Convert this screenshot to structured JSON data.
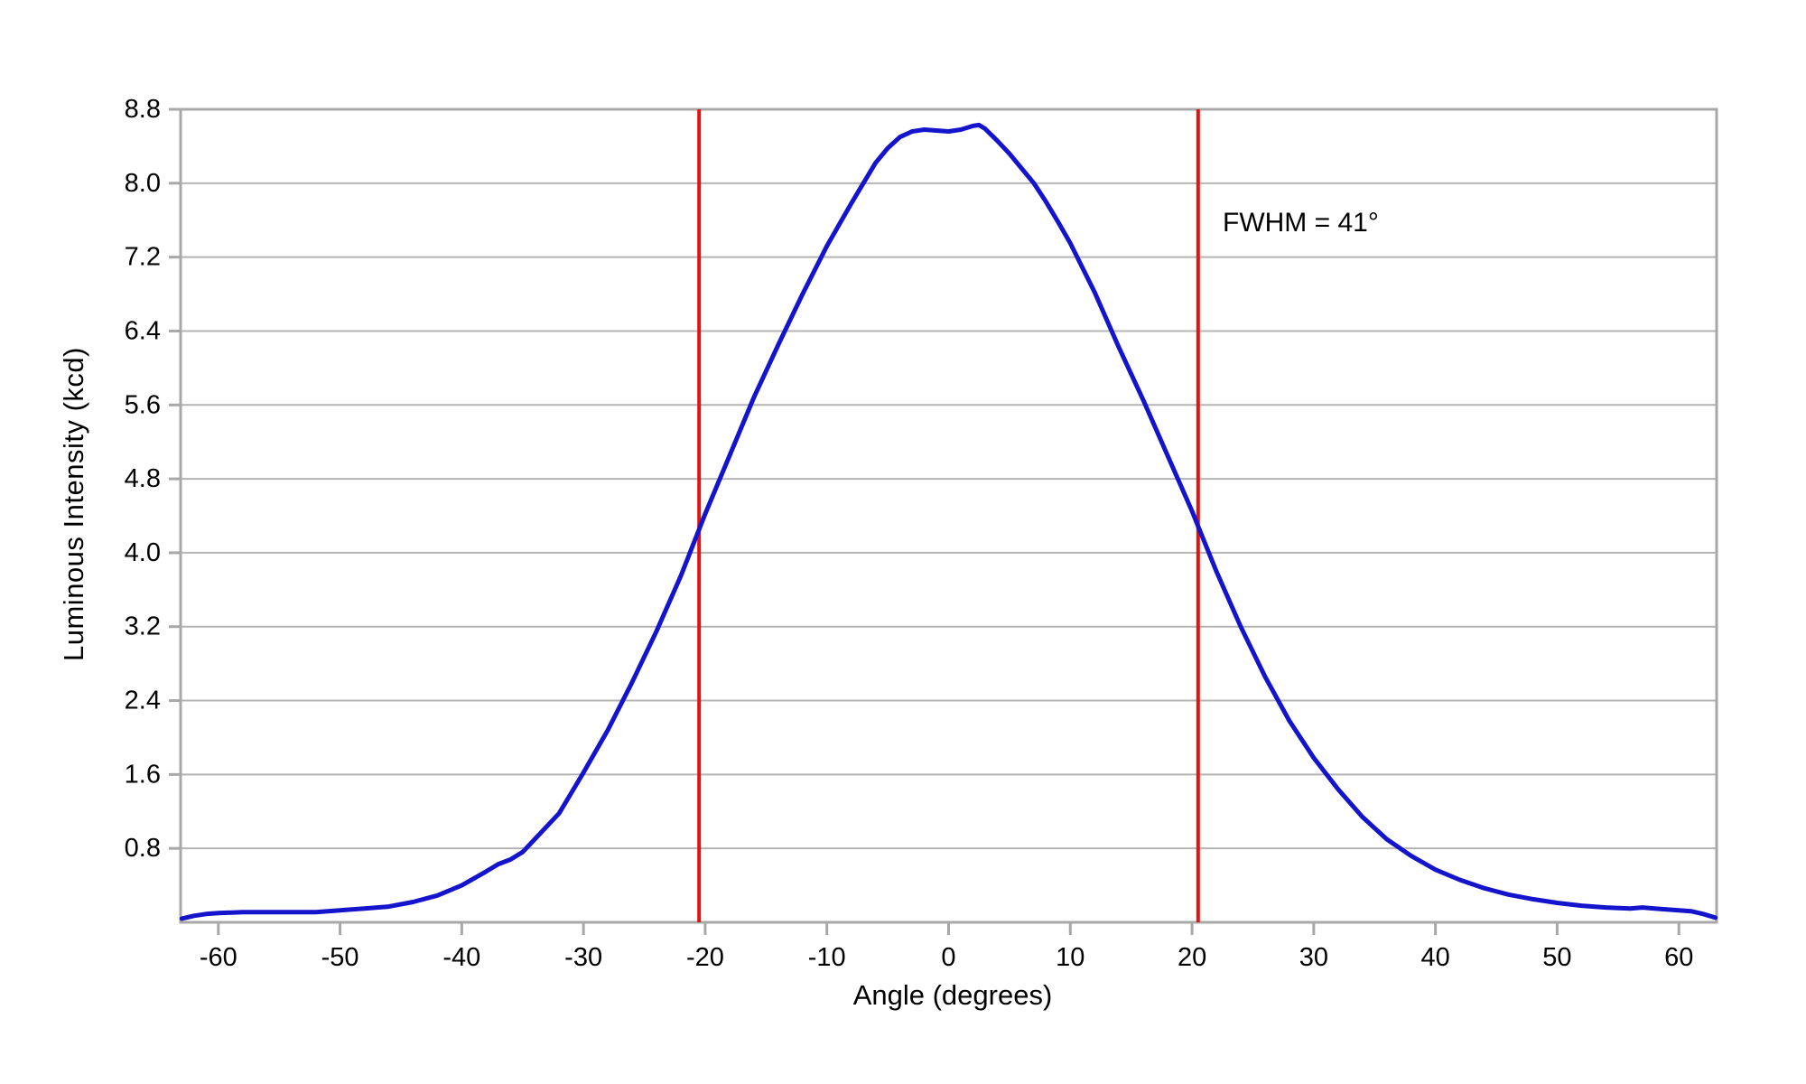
{
  "chart_data": {
    "type": "line",
    "title": "",
    "xlabel": "Angle (degrees)",
    "ylabel": "Luminous Intensity (kcd)",
    "xlim": [
      -63.1,
      63.1
    ],
    "ylim": [
      0,
      8.8
    ],
    "grid": "horizontal",
    "legend": "none",
    "x_ticks": [
      -60,
      -50,
      -40,
      -30,
      -20,
      -10,
      0,
      10,
      20,
      30,
      40,
      50,
      60
    ],
    "x_tick_labels": [
      "-60",
      "-50",
      "-40",
      "-30",
      "-20",
      "-10",
      "0",
      "10",
      "20",
      "30",
      "40",
      "50",
      "60"
    ],
    "y_ticks": [
      0.8,
      1.6,
      2.4,
      3.2,
      4.0,
      4.8,
      5.6,
      6.4,
      7.2,
      8.0,
      8.8
    ],
    "y_tick_labels": [
      "0.8",
      "1.6",
      "2.4",
      "3.2",
      "4.0",
      "4.8",
      "5.6",
      "6.4",
      "7.2",
      "8.0",
      "8.8"
    ],
    "series": [
      {
        "name": "luminous-intensity-curve",
        "color": "#1414cc",
        "points": [
          [
            -63,
            0.04
          ],
          [
            -62,
            0.07
          ],
          [
            -61,
            0.09
          ],
          [
            -60,
            0.1
          ],
          [
            -58,
            0.11
          ],
          [
            -56,
            0.11
          ],
          [
            -54,
            0.11
          ],
          [
            -52,
            0.11
          ],
          [
            -50,
            0.13
          ],
          [
            -48,
            0.15
          ],
          [
            -46,
            0.17
          ],
          [
            -44,
            0.22
          ],
          [
            -42,
            0.29
          ],
          [
            -40,
            0.4
          ],
          [
            -38,
            0.55
          ],
          [
            -37,
            0.63
          ],
          [
            -36,
            0.68
          ],
          [
            -35,
            0.76
          ],
          [
            -34,
            0.9
          ],
          [
            -32,
            1.18
          ],
          [
            -30,
            1.62
          ],
          [
            -28,
            2.08
          ],
          [
            -26,
            2.6
          ],
          [
            -24,
            3.15
          ],
          [
            -22,
            3.75
          ],
          [
            -20,
            4.42
          ],
          [
            -18,
            5.05
          ],
          [
            -16,
            5.68
          ],
          [
            -14,
            6.25
          ],
          [
            -12,
            6.8
          ],
          [
            -10,
            7.32
          ],
          [
            -9,
            7.55
          ],
          [
            -8,
            7.78
          ],
          [
            -7,
            8.0
          ],
          [
            -6,
            8.22
          ],
          [
            -5,
            8.38
          ],
          [
            -4,
            8.5
          ],
          [
            -3,
            8.56
          ],
          [
            -2,
            8.58
          ],
          [
            -1,
            8.57
          ],
          [
            0,
            8.56
          ],
          [
            1,
            8.58
          ],
          [
            2,
            8.62
          ],
          [
            2.5,
            8.63
          ],
          [
            3,
            8.59
          ],
          [
            4,
            8.46
          ],
          [
            5,
            8.32
          ],
          [
            6,
            8.16
          ],
          [
            7,
            8.0
          ],
          [
            8,
            7.8
          ],
          [
            9,
            7.58
          ],
          [
            10,
            7.35
          ],
          [
            12,
            6.82
          ],
          [
            14,
            6.22
          ],
          [
            16,
            5.65
          ],
          [
            18,
            5.05
          ],
          [
            20,
            4.45
          ],
          [
            22,
            3.8
          ],
          [
            24,
            3.2
          ],
          [
            26,
            2.66
          ],
          [
            28,
            2.18
          ],
          [
            30,
            1.78
          ],
          [
            32,
            1.44
          ],
          [
            34,
            1.14
          ],
          [
            36,
            0.9
          ],
          [
            38,
            0.72
          ],
          [
            40,
            0.57
          ],
          [
            42,
            0.46
          ],
          [
            44,
            0.37
          ],
          [
            46,
            0.3
          ],
          [
            48,
            0.25
          ],
          [
            50,
            0.21
          ],
          [
            52,
            0.18
          ],
          [
            54,
            0.16
          ],
          [
            56,
            0.15
          ],
          [
            57,
            0.16
          ],
          [
            58,
            0.15
          ],
          [
            60,
            0.13
          ],
          [
            61,
            0.12
          ],
          [
            62,
            0.09
          ],
          [
            63,
            0.05
          ]
        ]
      }
    ],
    "reference_lines": [
      {
        "name": "fwhm-left",
        "axis": "x",
        "value": -20.5,
        "color": "#e01414"
      },
      {
        "name": "fwhm-right",
        "axis": "x",
        "value": 20.5,
        "color": "#e01414"
      }
    ],
    "annotation": {
      "text": "FWHM = 41°"
    },
    "colors": {
      "curve": "#1414cc",
      "reference_line": "#e01414",
      "gridline": "#b4b4b4",
      "axis_border": "#a8a8a8",
      "text": "#000000",
      "background": "#ffffff"
    }
  }
}
